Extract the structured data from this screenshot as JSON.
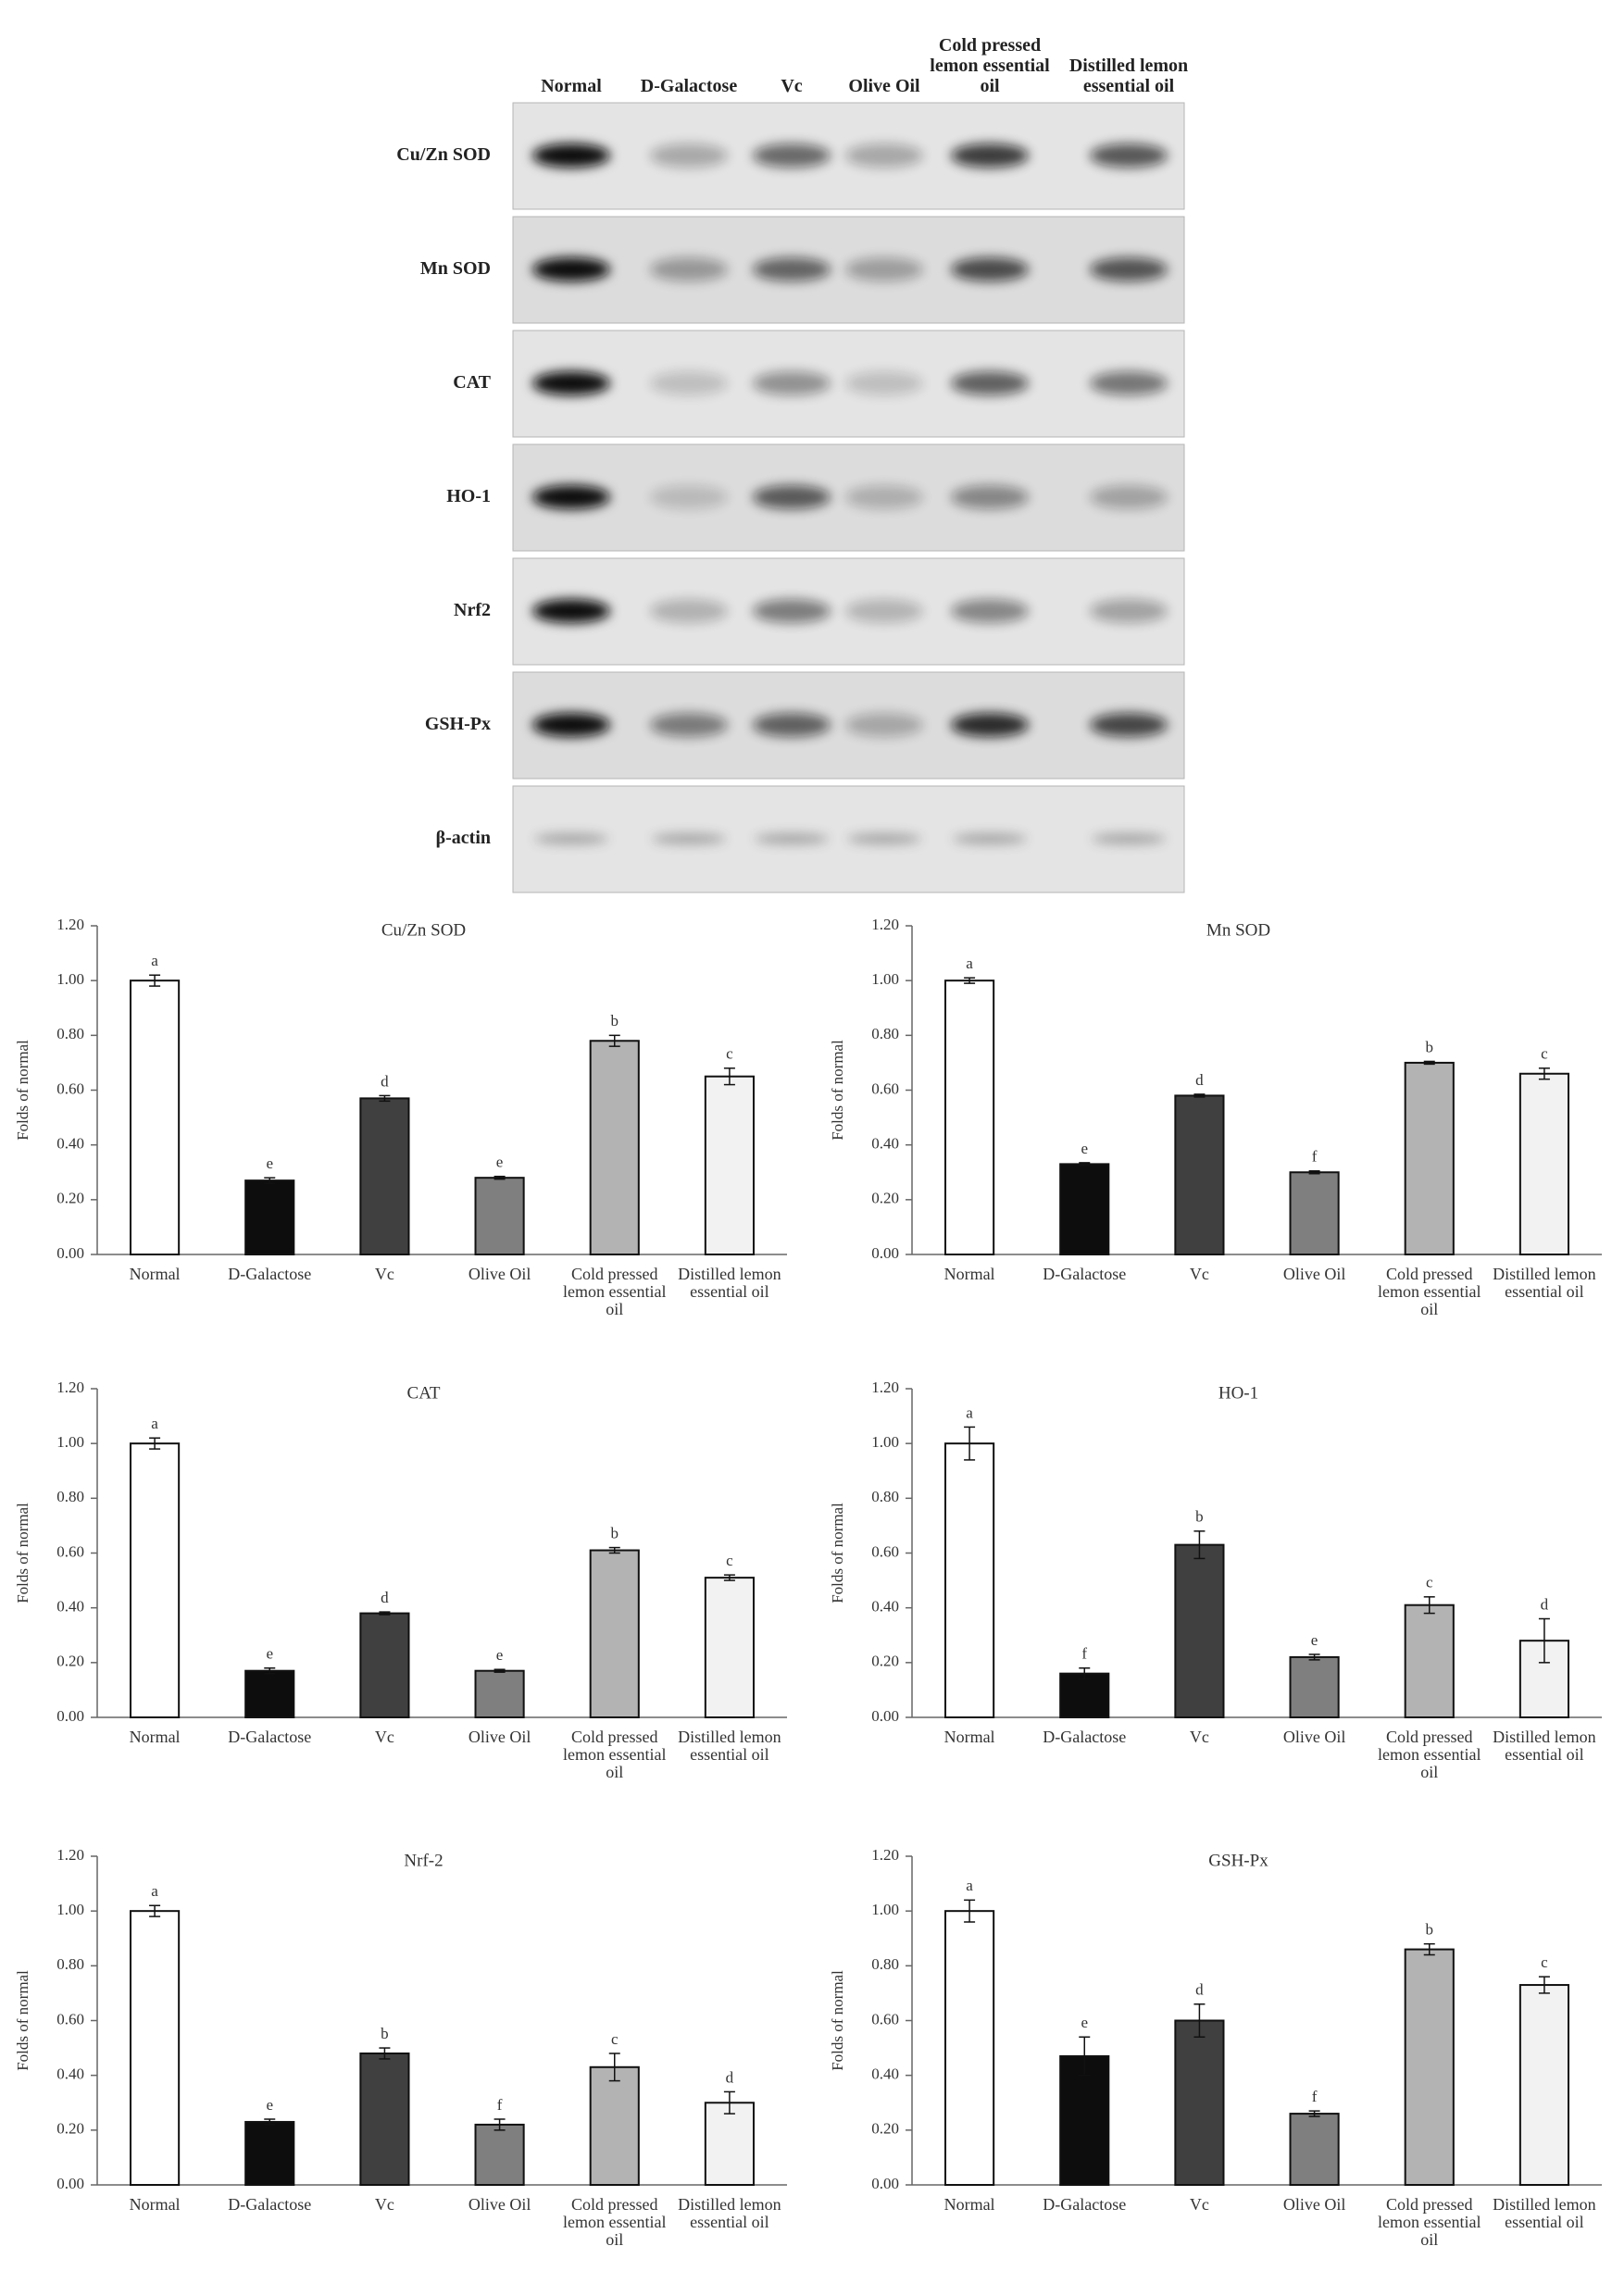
{
  "blot": {
    "lanes": [
      "Normal",
      "D-Galactose",
      "Vc",
      "Olive Oil",
      "Cold pressed lemon essential oil",
      "Distilled lemon essential oil"
    ],
    "proteins": [
      "Cu/Zn SOD",
      "Mn SOD",
      "CAT",
      "HO-1",
      "Nrf2",
      "GSH-Px",
      "β-actin"
    ]
  },
  "chart_data": [
    {
      "type": "bar",
      "title": "Cu/Zn SOD",
      "y_label": "Folds of normal",
      "categories": [
        "Normal",
        "D-Galactose",
        "Vc",
        "Olive Oil",
        "Cold pressed lemon essential oil",
        "Distilled lemon essential oil"
      ],
      "values": [
        1.0,
        0.27,
        0.57,
        0.28,
        0.78,
        0.65
      ],
      "errors": [
        0.02,
        0.01,
        0.01,
        0.005,
        0.02,
        0.03
      ],
      "letters": [
        "a",
        "e",
        "d",
        "e",
        "b",
        "c"
      ],
      "colors": [
        "#ffffff",
        "#0d0d0d",
        "#404040",
        "#7f7f7f",
        "#b3b3b3",
        "#f2f2f2"
      ],
      "ylim": [
        0,
        1.2
      ],
      "yticks": [
        {
          "value": 0,
          "label": "0.00"
        },
        {
          "value": 0.2,
          "label": "0.20"
        },
        {
          "value": 0.4,
          "label": "0.40"
        },
        {
          "value": 0.6,
          "label": "0.60"
        },
        {
          "value": 0.8,
          "label": "0.80"
        },
        {
          "value": 1.0,
          "label": "1.00"
        },
        {
          "value": 1.2,
          "label": "1.20"
        }
      ]
    },
    {
      "type": "bar",
      "title": "Mn SOD",
      "y_label": "Folds of normal",
      "categories": [
        "Normal",
        "D-Galactose",
        "Vc",
        "Olive Oil",
        "Cold pressed lemon essential oil",
        "Distilled lemon essential oil"
      ],
      "values": [
        1.0,
        0.33,
        0.58,
        0.3,
        0.7,
        0.66
      ],
      "errors": [
        0.01,
        0.005,
        0.005,
        0.005,
        0.005,
        0.02
      ],
      "letters": [
        "a",
        "e",
        "d",
        "f",
        "b",
        "c"
      ],
      "colors": [
        "#ffffff",
        "#0d0d0d",
        "#404040",
        "#7f7f7f",
        "#b3b3b3",
        "#f2f2f2"
      ],
      "ylim": [
        0,
        1.2
      ],
      "yticks": [
        {
          "value": 0,
          "label": "0.00"
        },
        {
          "value": 0.2,
          "label": "0.20"
        },
        {
          "value": 0.4,
          "label": "0.40"
        },
        {
          "value": 0.6,
          "label": "0.60"
        },
        {
          "value": 0.8,
          "label": "0.80"
        },
        {
          "value": 1.0,
          "label": "1.00"
        },
        {
          "value": 1.2,
          "label": "1.20"
        }
      ]
    },
    {
      "type": "bar",
      "title": "CAT",
      "y_label": "Folds of normal",
      "categories": [
        "Normal",
        "D-Galactose",
        "Vc",
        "Olive Oil",
        "Cold pressed lemon essential oil",
        "Distilled lemon essential oil"
      ],
      "values": [
        1.0,
        0.17,
        0.38,
        0.17,
        0.61,
        0.51
      ],
      "errors": [
        0.02,
        0.01,
        0.005,
        0.005,
        0.01,
        0.01
      ],
      "letters": [
        "a",
        "e",
        "d",
        "e",
        "b",
        "c"
      ],
      "colors": [
        "#ffffff",
        "#0d0d0d",
        "#404040",
        "#7f7f7f",
        "#b3b3b3",
        "#f2f2f2"
      ],
      "ylim": [
        0,
        1.2
      ],
      "yticks": [
        {
          "value": 0,
          "label": "0.00"
        },
        {
          "value": 0.2,
          "label": "0.20"
        },
        {
          "value": 0.4,
          "label": "0.40"
        },
        {
          "value": 0.6,
          "label": "0.60"
        },
        {
          "value": 0.8,
          "label": "0.80"
        },
        {
          "value": 1.0,
          "label": "1.00"
        },
        {
          "value": 1.2,
          "label": "1.20"
        }
      ]
    },
    {
      "type": "bar",
      "title": "HO-1",
      "y_label": "Folds of normal",
      "categories": [
        "Normal",
        "D-Galactose",
        "Vc",
        "Olive Oil",
        "Cold pressed lemon essential oil",
        "Distilled lemon essential oil"
      ],
      "values": [
        1.0,
        0.16,
        0.63,
        0.22,
        0.41,
        0.28
      ],
      "errors": [
        0.06,
        0.02,
        0.05,
        0.01,
        0.03,
        0.08
      ],
      "letters": [
        "a",
        "f",
        "b",
        "e",
        "c",
        "d"
      ],
      "colors": [
        "#ffffff",
        "#0d0d0d",
        "#404040",
        "#7f7f7f",
        "#b3b3b3",
        "#f2f2f2"
      ],
      "ylim": [
        0,
        1.2
      ],
      "yticks": [
        {
          "value": 0,
          "label": "0.00"
        },
        {
          "value": 0.2,
          "label": "0.20"
        },
        {
          "value": 0.4,
          "label": "0.40"
        },
        {
          "value": 0.6,
          "label": "0.60"
        },
        {
          "value": 0.8,
          "label": "0.80"
        },
        {
          "value": 1.0,
          "label": "1.00"
        },
        {
          "value": 1.2,
          "label": "1.20"
        }
      ]
    },
    {
      "type": "bar",
      "title": "Nrf-2",
      "y_label": "Folds of normal",
      "categories": [
        "Normal",
        "D-Galactose",
        "Vc",
        "Olive Oil",
        "Cold pressed lemon essential oil",
        "Distilled lemon essential oil"
      ],
      "values": [
        1.0,
        0.23,
        0.48,
        0.22,
        0.43,
        0.3
      ],
      "errors": [
        0.02,
        0.01,
        0.02,
        0.02,
        0.05,
        0.04
      ],
      "letters": [
        "a",
        "e",
        "b",
        "f",
        "c",
        "d"
      ],
      "colors": [
        "#ffffff",
        "#0d0d0d",
        "#404040",
        "#7f7f7f",
        "#b3b3b3",
        "#f2f2f2"
      ],
      "ylim": [
        0,
        1.2
      ],
      "yticks": [
        {
          "value": 0,
          "label": "0.00"
        },
        {
          "value": 0.2,
          "label": "0.20"
        },
        {
          "value": 0.4,
          "label": "0.40"
        },
        {
          "value": 0.6,
          "label": "0.60"
        },
        {
          "value": 0.8,
          "label": "0.80"
        },
        {
          "value": 1.0,
          "label": "1.00"
        },
        {
          "value": 1.2,
          "label": "1.20"
        }
      ]
    },
    {
      "type": "bar",
      "title": "GSH-Px",
      "y_label": "Folds of normal",
      "categories": [
        "Normal",
        "D-Galactose",
        "Vc",
        "Olive Oil",
        "Cold pressed lemon essential oil",
        "Distilled lemon essential oil"
      ],
      "values": [
        1.0,
        0.47,
        0.6,
        0.26,
        0.86,
        0.73
      ],
      "errors": [
        0.04,
        0.07,
        0.06,
        0.01,
        0.02,
        0.03
      ],
      "letters": [
        "a",
        "e",
        "d",
        "f",
        "b",
        "c"
      ],
      "colors": [
        "#ffffff",
        "#0d0d0d",
        "#404040",
        "#7f7f7f",
        "#b3b3b3",
        "#f2f2f2"
      ],
      "ylim": [
        0,
        1.2
      ],
      "yticks": [
        {
          "value": 0,
          "label": "0.00"
        },
        {
          "value": 0.2,
          "label": "0.20"
        },
        {
          "value": 0.4,
          "label": "0.40"
        },
        {
          "value": 0.6,
          "label": "0.60"
        },
        {
          "value": 0.8,
          "label": "0.80"
        },
        {
          "value": 1.0,
          "label": "1.00"
        },
        {
          "value": 1.2,
          "label": "1.20"
        }
      ]
    }
  ]
}
